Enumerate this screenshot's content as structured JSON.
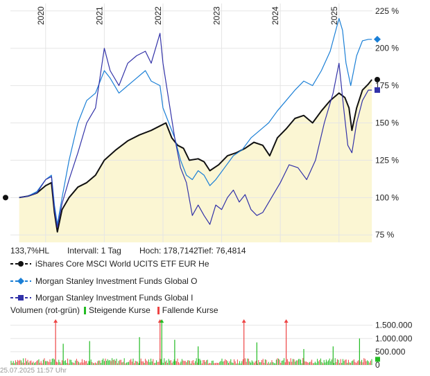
{
  "chart_data": {
    "type": "line",
    "title": "",
    "x_years": [
      "2020",
      "2021",
      "2022",
      "2023",
      "2024",
      "2025"
    ],
    "yaxis_ticks": [
      {
        "value": 225,
        "label": "225 %"
      },
      {
        "value": 200,
        "label": "200 %"
      },
      {
        "value": 175,
        "label": "175 %"
      },
      {
        "value": 150,
        "label": "150 %"
      },
      {
        "value": 125,
        "label": "125 %"
      },
      {
        "value": 100,
        "label": "100 %"
      },
      {
        "value": 75,
        "label": "75 %"
      }
    ],
    "ylim": [
      70,
      230
    ],
    "xlim": [
      2019.4,
      2025.57
    ],
    "grid": true,
    "series": [
      {
        "name": "iShares Core MSCI World UCITS ETF EUR He",
        "color": "#111111",
        "marker": "circle",
        "fill": "#fbf6d3",
        "points": [
          [
            2019.55,
            100
          ],
          [
            2019.7,
            101
          ],
          [
            2019.85,
            103
          ],
          [
            2020.0,
            108
          ],
          [
            2020.1,
            110
          ],
          [
            2020.15,
            90
          ],
          [
            2020.2,
            77
          ],
          [
            2020.28,
            92
          ],
          [
            2020.4,
            100
          ],
          [
            2020.55,
            107
          ],
          [
            2020.7,
            110
          ],
          [
            2020.85,
            115
          ],
          [
            2021.0,
            125
          ],
          [
            2021.2,
            132
          ],
          [
            2021.4,
            138
          ],
          [
            2021.6,
            142
          ],
          [
            2021.8,
            145
          ],
          [
            2021.95,
            148
          ],
          [
            2022.05,
            150
          ],
          [
            2022.15,
            140
          ],
          [
            2022.25,
            135
          ],
          [
            2022.35,
            133
          ],
          [
            2022.45,
            125
          ],
          [
            2022.6,
            126
          ],
          [
            2022.7,
            124
          ],
          [
            2022.8,
            118
          ],
          [
            2022.95,
            122
          ],
          [
            2023.1,
            128
          ],
          [
            2023.25,
            130
          ],
          [
            2023.4,
            133
          ],
          [
            2023.55,
            137
          ],
          [
            2023.7,
            135
          ],
          [
            2023.82,
            128
          ],
          [
            2023.95,
            140
          ],
          [
            2024.1,
            146
          ],
          [
            2024.25,
            153
          ],
          [
            2024.4,
            155
          ],
          [
            2024.55,
            150
          ],
          [
            2024.7,
            158
          ],
          [
            2024.85,
            165
          ],
          [
            2025.0,
            170
          ],
          [
            2025.1,
            167
          ],
          [
            2025.17,
            160
          ],
          [
            2025.22,
            145
          ],
          [
            2025.3,
            160
          ],
          [
            2025.4,
            172
          ],
          [
            2025.5,
            176
          ],
          [
            2025.56,
            179
          ]
        ]
      },
      {
        "name": "Morgan Stanley Investment Funds Global O",
        "color": "#1a7fd6",
        "marker": "diamond",
        "points": [
          [
            2019.55,
            100
          ],
          [
            2019.7,
            101
          ],
          [
            2019.85,
            104
          ],
          [
            2020.0,
            112
          ],
          [
            2020.1,
            115
          ],
          [
            2020.15,
            95
          ],
          [
            2020.2,
            82
          ],
          [
            2020.28,
            100
          ],
          [
            2020.4,
            125
          ],
          [
            2020.55,
            150
          ],
          [
            2020.7,
            165
          ],
          [
            2020.85,
            170
          ],
          [
            2021.0,
            185
          ],
          [
            2021.1,
            180
          ],
          [
            2021.25,
            170
          ],
          [
            2021.4,
            175
          ],
          [
            2021.55,
            180
          ],
          [
            2021.7,
            185
          ],
          [
            2021.8,
            178
          ],
          [
            2021.95,
            175
          ],
          [
            2022.0,
            160
          ],
          [
            2022.1,
            150
          ],
          [
            2022.2,
            140
          ],
          [
            2022.3,
            125
          ],
          [
            2022.4,
            115
          ],
          [
            2022.5,
            112
          ],
          [
            2022.6,
            118
          ],
          [
            2022.7,
            115
          ],
          [
            2022.8,
            108
          ],
          [
            2022.9,
            112
          ],
          [
            2023.05,
            120
          ],
          [
            2023.2,
            128
          ],
          [
            2023.35,
            132
          ],
          [
            2023.5,
            140
          ],
          [
            2023.65,
            145
          ],
          [
            2023.8,
            150
          ],
          [
            2023.95,
            158
          ],
          [
            2024.1,
            165
          ],
          [
            2024.25,
            172
          ],
          [
            2024.4,
            178
          ],
          [
            2024.55,
            175
          ],
          [
            2024.7,
            185
          ],
          [
            2024.85,
            198
          ],
          [
            2025.0,
            220
          ],
          [
            2025.06,
            212
          ],
          [
            2025.12,
            190
          ],
          [
            2025.2,
            175
          ],
          [
            2025.3,
            195
          ],
          [
            2025.4,
            205
          ],
          [
            2025.5,
            206
          ],
          [
            2025.56,
            206
          ]
        ]
      },
      {
        "name": "Morgan Stanley Investment Funds Global I",
        "color": "#3232a8",
        "marker": "square",
        "points": [
          [
            2019.55,
            100
          ],
          [
            2019.7,
            101
          ],
          [
            2019.85,
            103
          ],
          [
            2020.0,
            112
          ],
          [
            2020.1,
            114
          ],
          [
            2020.15,
            92
          ],
          [
            2020.2,
            80
          ],
          [
            2020.28,
            96
          ],
          [
            2020.4,
            112
          ],
          [
            2020.55,
            130
          ],
          [
            2020.7,
            150
          ],
          [
            2020.85,
            160
          ],
          [
            2021.0,
            200
          ],
          [
            2021.1,
            185
          ],
          [
            2021.25,
            175
          ],
          [
            2021.4,
            190
          ],
          [
            2021.55,
            195
          ],
          [
            2021.7,
            198
          ],
          [
            2021.8,
            190
          ],
          [
            2021.95,
            210
          ],
          [
            2022.0,
            190
          ],
          [
            2022.1,
            165
          ],
          [
            2022.2,
            140
          ],
          [
            2022.3,
            120
          ],
          [
            2022.4,
            110
          ],
          [
            2022.5,
            88
          ],
          [
            2022.6,
            95
          ],
          [
            2022.7,
            88
          ],
          [
            2022.8,
            82
          ],
          [
            2022.9,
            95
          ],
          [
            2023.0,
            92
          ],
          [
            2023.1,
            100
          ],
          [
            2023.2,
            105
          ],
          [
            2023.3,
            97
          ],
          [
            2023.4,
            102
          ],
          [
            2023.5,
            92
          ],
          [
            2023.6,
            88
          ],
          [
            2023.7,
            90
          ],
          [
            2023.85,
            100
          ],
          [
            2024.0,
            110
          ],
          [
            2024.15,
            122
          ],
          [
            2024.3,
            120
          ],
          [
            2024.45,
            112
          ],
          [
            2024.6,
            125
          ],
          [
            2024.75,
            150
          ],
          [
            2024.9,
            170
          ],
          [
            2025.0,
            190
          ],
          [
            2025.08,
            160
          ],
          [
            2025.15,
            135
          ],
          [
            2025.22,
            130
          ],
          [
            2025.3,
            150
          ],
          [
            2025.4,
            165
          ],
          [
            2025.5,
            172
          ],
          [
            2025.56,
            172
          ]
        ]
      }
    ],
    "volume": {
      "yaxis_ticks": [
        {
          "value": 1500000,
          "label": "1.500.000"
        },
        {
          "value": 1000000,
          "label": "1.000.000"
        },
        {
          "value": 500000,
          "label": "500.000"
        },
        {
          "value": 0,
          "label": "0"
        }
      ],
      "ylim": [
        0,
        1700000
      ],
      "up_color": "#22bb22",
      "down_color": "#ee4444",
      "spikes": [
        {
          "x": 2020.17,
          "value": 1700000,
          "color": "down"
        },
        {
          "x": 2021.95,
          "value": 1700000,
          "color": "down"
        },
        {
          "x": 2021.98,
          "value": 1700000,
          "color": "up"
        },
        {
          "x": 2023.38,
          "value": 1700000,
          "color": "down"
        },
        {
          "x": 2024.1,
          "value": 1700000,
          "color": "down"
        },
        {
          "x": 2020.3,
          "value": 800000,
          "color": "up"
        },
        {
          "x": 2020.75,
          "value": 900000,
          "color": "up"
        },
        {
          "x": 2021.6,
          "value": 1050000,
          "color": "up"
        },
        {
          "x": 2022.2,
          "value": 950000,
          "color": "up"
        },
        {
          "x": 2022.6,
          "value": 700000,
          "color": "up"
        },
        {
          "x": 2023.6,
          "value": 850000,
          "color": "up"
        },
        {
          "x": 2024.4,
          "value": 600000,
          "color": "up"
        },
        {
          "x": 2024.9,
          "value": 700000,
          "color": "up"
        },
        {
          "x": 2025.35,
          "value": 1000000,
          "color": "up"
        }
      ]
    }
  },
  "info": {
    "percent": "133,7%HL",
    "interval": "Intervall: 1 Tag",
    "high": "Hoch: 178,7142",
    "low": "Tief: 76,4814"
  },
  "legend": {
    "items": [
      {
        "label": "iShares Core MSCI World UCITS ETF EUR He"
      },
      {
        "label": "Morgan Stanley Investment Funds Global O"
      },
      {
        "label": "Morgan Stanley Investment Funds Global I"
      }
    ]
  },
  "volume_legend": {
    "title": "Volumen (rot-grün)",
    "up": "Steigende Kurse",
    "down": "Fallende Kurse"
  },
  "timestamp": "25.07.2025 11:57 Uhr"
}
